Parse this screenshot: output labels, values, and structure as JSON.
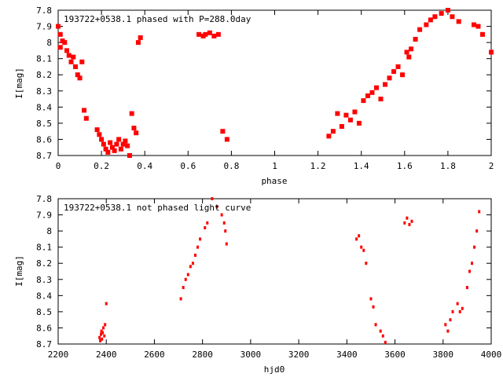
{
  "chart_data": [
    {
      "type": "scatter",
      "title": "193722+0538.1 phased with P=288.0day",
      "xlabel": "phase",
      "ylabel": "I[mag]",
      "xlim": [
        0,
        2
      ],
      "ylim": [
        8.7,
        7.8
      ],
      "y_inverted": true,
      "xticks": [
        "0",
        "0.2",
        "0.4",
        "0.6",
        "0.8",
        "1",
        "1.2",
        "1.4",
        "1.6",
        "1.8",
        "2"
      ],
      "yticks": [
        "7.8",
        "7.9",
        "8",
        "8.1",
        "8.2",
        "8.3",
        "8.4",
        "8.5",
        "8.6",
        "8.7"
      ],
      "marker_color": "#ff0000",
      "marker": "large",
      "x": [
        0.0,
        0.01,
        0.02,
        0.01,
        0.03,
        0.04,
        0.05,
        0.06,
        0.07,
        0.08,
        0.09,
        0.1,
        0.11,
        0.12,
        0.13,
        0.18,
        0.19,
        0.2,
        0.21,
        0.22,
        0.23,
        0.24,
        0.25,
        0.26,
        0.27,
        0.28,
        0.29,
        0.3,
        0.31,
        0.32,
        0.33,
        0.34,
        0.35,
        0.36,
        0.37,
        0.38,
        0.65,
        0.67,
        0.68,
        0.7,
        0.72,
        0.74,
        0.76,
        0.78,
        1.25,
        1.27,
        1.29,
        1.31,
        1.33,
        1.35,
        1.37,
        1.39,
        1.41,
        1.43,
        1.45,
        1.47,
        1.49,
        1.51,
        1.53,
        1.55,
        1.57,
        1.59,
        1.61,
        1.62,
        1.63,
        1.65,
        1.67,
        1.7,
        1.72,
        1.74,
        1.77,
        1.8,
        1.82,
        1.85,
        1.92,
        1.94,
        1.96,
        2.0
      ],
      "y": [
        7.9,
        7.95,
        7.99,
        8.03,
        8.0,
        8.05,
        8.08,
        8.12,
        8.09,
        8.15,
        8.2,
        8.22,
        8.12,
        8.42,
        8.47,
        8.54,
        8.57,
        8.6,
        8.63,
        8.66,
        8.68,
        8.62,
        8.65,
        8.67,
        8.63,
        8.6,
        8.66,
        8.63,
        8.61,
        8.64,
        8.7,
        8.44,
        8.53,
        8.56,
        8.0,
        7.97,
        7.95,
        7.96,
        7.95,
        7.94,
        7.96,
        7.95,
        8.55,
        8.6,
        8.58,
        8.55,
        8.44,
        8.52,
        8.45,
        8.48,
        8.43,
        8.5,
        8.36,
        8.33,
        8.31,
        8.28,
        8.35,
        8.26,
        8.22,
        8.18,
        8.15,
        8.2,
        8.06,
        8.09,
        8.04,
        7.98,
        7.92,
        7.89,
        7.86,
        7.84,
        7.82,
        7.8,
        7.84,
        7.87,
        7.89,
        7.9,
        7.95,
        8.06
      ]
    },
    {
      "type": "scatter",
      "title": "193722+0538.1 not phased light curve",
      "xlabel": "hjd0",
      "ylabel": "I[mag]",
      "xlim": [
        2200,
        4000
      ],
      "ylim": [
        8.7,
        7.8
      ],
      "y_inverted": true,
      "xticks": [
        "2200",
        "2400",
        "2600",
        "2800",
        "3000",
        "3200",
        "3400",
        "3600",
        "3800",
        "4000"
      ],
      "yticks": [
        "7.8",
        "7.9",
        "8",
        "8.1",
        "8.2",
        "8.3",
        "8.4",
        "8.5",
        "8.6",
        "8.7"
      ],
      "marker_color": "#ff0000",
      "marker": "small",
      "x": [
        2372,
        2375,
        2378,
        2380,
        2382,
        2385,
        2388,
        2392,
        2395,
        2400,
        2710,
        2720,
        2730,
        2740,
        2750,
        2760,
        2770,
        2780,
        2790,
        2810,
        2820,
        2840,
        2860,
        2880,
        2890,
        2895,
        2900,
        3440,
        3450,
        3460,
        3470,
        3480,
        3500,
        3510,
        3520,
        3540,
        3550,
        3560,
        3640,
        3650,
        3660,
        3670,
        3810,
        3820,
        3830,
        3840,
        3860,
        3870,
        3880,
        3900,
        3910,
        3920,
        3930,
        3940,
        3950
      ],
      "y": [
        8.66,
        8.68,
        8.64,
        8.62,
        8.67,
        8.63,
        8.6,
        8.65,
        8.58,
        8.45,
        8.42,
        8.35,
        8.3,
        8.27,
        8.22,
        8.2,
        8.15,
        8.1,
        8.05,
        7.98,
        7.95,
        7.8,
        7.85,
        7.9,
        7.95,
        8.0,
        8.08,
        8.05,
        8.03,
        8.1,
        8.12,
        8.2,
        8.42,
        8.47,
        8.58,
        8.62,
        8.65,
        8.69,
        7.95,
        7.92,
        7.96,
        7.94,
        8.58,
        8.62,
        8.55,
        8.5,
        8.45,
        8.5,
        8.48,
        8.35,
        8.25,
        8.2,
        8.1,
        8.0,
        7.88
      ]
    }
  ]
}
